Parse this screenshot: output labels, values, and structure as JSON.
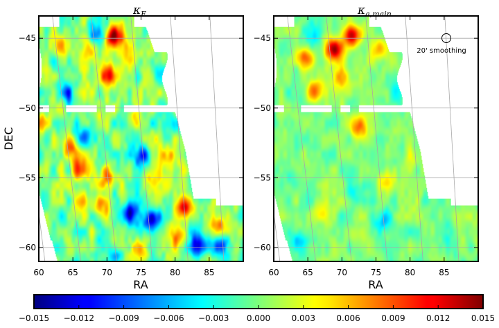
{
  "chart_data": [
    {
      "type": "heatmap",
      "title_main": "κ",
      "title_sub": "E",
      "xlabel": "RA",
      "ylabel": "DEC",
      "xlim": [
        60,
        90
      ],
      "ylim": [
        -61,
        -43.4
      ],
      "x_ticks": [
        "60",
        "65",
        "70",
        "75",
        "80",
        "85"
      ],
      "y_ticks": [
        "−45",
        "−50",
        "−55",
        "−60"
      ],
      "grid": "on",
      "hotspots": [
        {
          "ra": 71,
          "dec": -44.9,
          "value": 0.014
        },
        {
          "ra": 70.2,
          "dec": -47.7,
          "value": 0.013
        },
        {
          "ra": 67.5,
          "dec": -45.6,
          "value": 0.008
        },
        {
          "ra": 73.5,
          "dec": -46.5,
          "value": 0.007
        },
        {
          "ra": 81.5,
          "dec": -57.1,
          "value": 0.011
        },
        {
          "ra": 64.5,
          "dec": -52.9,
          "value": 0.008
        },
        {
          "ra": 66,
          "dec": -54.4,
          "value": 0.008
        },
        {
          "ra": 70,
          "dec": -55,
          "value": 0.007
        },
        {
          "ra": 79,
          "dec": -53.5,
          "value": 0.007
        },
        {
          "ra": 66,
          "dec": -56.8,
          "value": 0.006
        },
        {
          "ra": 69.5,
          "dec": -57.3,
          "value": 0.006
        },
        {
          "ra": 80.5,
          "dec": -59.3,
          "value": 0.007
        },
        {
          "ra": 77,
          "dec": -55.3,
          "value": 0.005
        },
        {
          "ra": 60.5,
          "dec": -51,
          "value": 0.006
        },
        {
          "ra": 86.5,
          "dec": -58.3,
          "value": 0.006
        },
        {
          "ra": 75,
          "dec": -60.2,
          "value": 0.005
        },
        {
          "ra": 63.5,
          "dec": -45.5,
          "value": 0.005
        },
        {
          "ra": 73.5,
          "dec": -50.8,
          "value": 0.004
        },
        {
          "ra": 76.5,
          "dec": -58,
          "value": -0.013
        },
        {
          "ra": 73.5,
          "dec": -57.5,
          "value": -0.011
        },
        {
          "ra": 75,
          "dec": -53.5,
          "value": -0.009
        },
        {
          "ra": 63.8,
          "dec": -48.9,
          "value": -0.009
        },
        {
          "ra": 83.5,
          "dec": -59.8,
          "value": -0.011
        },
        {
          "ra": 87,
          "dec": -59.8,
          "value": -0.009
        },
        {
          "ra": 68.5,
          "dec": -44.8,
          "value": -0.008
        },
        {
          "ra": 66.8,
          "dec": -52,
          "value": -0.006
        },
        {
          "ra": 78,
          "dec": -47.6,
          "value": -0.006
        },
        {
          "ra": 71.5,
          "dec": -60.5,
          "value": -0.006
        },
        {
          "ra": 84.5,
          "dec": -56.2,
          "value": -0.005
        },
        {
          "ra": 79,
          "dec": -51.2,
          "value": -0.004
        }
      ]
    },
    {
      "type": "heatmap",
      "title_main": "κ",
      "title_sub": "a,main",
      "xlabel": "RA",
      "ylabel": "",
      "xlim": [
        60,
        90
      ],
      "ylim": [
        -61,
        -43.4
      ],
      "x_ticks": [
        "60",
        "65",
        "70",
        "75",
        "80",
        "85"
      ],
      "y_ticks": [
        "−45",
        "−50",
        "−55",
        "−60"
      ],
      "grid": "on",
      "annotation": "20' smoothing",
      "hotspots": [
        {
          "ra": 71.5,
          "dec": -44.8,
          "value": 0.014
        },
        {
          "ra": 69,
          "dec": -45.8,
          "value": 0.013
        },
        {
          "ra": 64.5,
          "dec": -46.4,
          "value": 0.009
        },
        {
          "ra": 69.8,
          "dec": -47.8,
          "value": 0.008
        },
        {
          "ra": 66,
          "dec": -48.8,
          "value": 0.007
        },
        {
          "ra": 72.5,
          "dec": -51.3,
          "value": 0.009
        },
        {
          "ra": 75.5,
          "dec": -45.8,
          "value": 0.006
        },
        {
          "ra": 67,
          "dec": -57.5,
          "value": 0.004
        },
        {
          "ra": 76.5,
          "dec": -55,
          "value": 0.004
        },
        {
          "ra": 80,
          "dec": -53.5,
          "value": 0.003
        },
        {
          "ra": 72,
          "dec": -59,
          "value": 0.003
        },
        {
          "ra": 76,
          "dec": -58,
          "value": -0.006
        },
        {
          "ra": 63.5,
          "dec": -59.5,
          "value": -0.005
        },
        {
          "ra": 72,
          "dec": -56,
          "value": -0.004
        },
        {
          "ra": 78,
          "dec": -48.8,
          "value": -0.004
        },
        {
          "ra": 62.5,
          "dec": -55,
          "value": -0.003
        },
        {
          "ra": 85,
          "dec": -59,
          "value": -0.003
        },
        {
          "ra": 66,
          "dec": -44.6,
          "value": -0.004
        }
      ]
    }
  ],
  "colorbar": {
    "type": "colorbar",
    "vmin": -0.015,
    "vmax": 0.015,
    "colormap": "jet",
    "tick_labels": [
      "−0.015",
      "−0.012",
      "−0.009",
      "−0.006",
      "−0.003",
      "0.000",
      "0.003",
      "0.006",
      "0.009",
      "0.012",
      "0.015"
    ]
  }
}
